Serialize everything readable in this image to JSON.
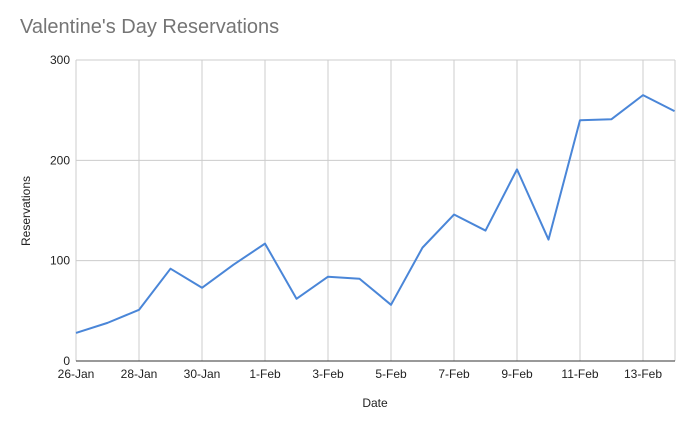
{
  "chart_data": {
    "type": "line",
    "title": "Valentine's Day Reservations",
    "xlabel": "Date",
    "ylabel": "Reservations",
    "ylim": [
      0,
      300
    ],
    "yticks": [
      0,
      100,
      200,
      300
    ],
    "xtick_labels": [
      "26-Jan",
      "28-Jan",
      "30-Jan",
      "1-Feb",
      "3-Feb",
      "5-Feb",
      "7-Feb",
      "9-Feb",
      "11-Feb",
      "13-Feb"
    ],
    "grid": true,
    "legend": "none",
    "x": [
      "26-Jan",
      "27-Jan",
      "28-Jan",
      "29-Jan",
      "30-Jan",
      "31-Jan",
      "1-Feb",
      "2-Feb",
      "3-Feb",
      "4-Feb",
      "5-Feb",
      "6-Feb",
      "7-Feb",
      "8-Feb",
      "9-Feb",
      "10-Feb",
      "11-Feb",
      "12-Feb",
      "13-Feb",
      "14-Feb"
    ],
    "series": [
      {
        "name": "Reservations",
        "color": "#4a86d8",
        "values": [
          28,
          38,
          51,
          92,
          73,
          96,
          117,
          62,
          84,
          82,
          56,
          113,
          146,
          130,
          191,
          121,
          240,
          241,
          265,
          249
        ]
      }
    ]
  }
}
